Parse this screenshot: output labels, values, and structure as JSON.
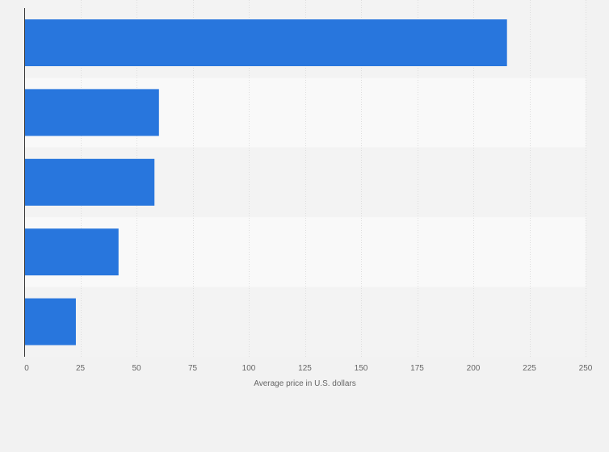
{
  "chart_data": {
    "type": "bar",
    "orientation": "horizontal",
    "categories": [
      "",
      "",
      "",
      "",
      ""
    ],
    "values": [
      215,
      60,
      58,
      42,
      23
    ],
    "xlabel": "Average price in U.S. dollars",
    "ylabel": "",
    "xlim": [
      0,
      250
    ],
    "x_ticks": [
      0,
      25,
      50,
      75,
      100,
      125,
      150,
      175,
      200,
      225,
      250
    ],
    "grid": true,
    "legend": "none",
    "bar_color": "#2876dd",
    "band_colors": [
      "#f3f3f3",
      "#f9f9f9"
    ],
    "background_color": "#f2f2f2"
  }
}
